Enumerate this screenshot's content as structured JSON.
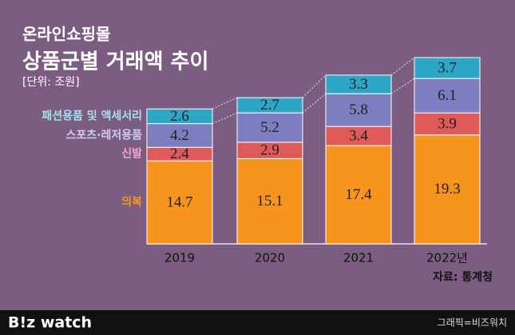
{
  "header": {
    "title_line1": "온라인쇼핑몰",
    "title_line2": "상품군별 거래액 추이",
    "unit": "[단위: 조원]"
  },
  "chart_data": {
    "type": "bar",
    "stacked": true,
    "categories": [
      "2019",
      "2020",
      "2021",
      "2022년"
    ],
    "series": [
      {
        "name": "의복",
        "color": "#f7941d",
        "label_color": "#f7941d",
        "values": [
          14.7,
          15.1,
          17.4,
          19.3
        ]
      },
      {
        "name": "신발",
        "color": "#e05a5a",
        "label_color": "#f5a3cf",
        "values": [
          2.4,
          2.9,
          3.4,
          3.9
        ]
      },
      {
        "name": "스포츠·레저용품",
        "color": "#7c7ec0",
        "label_color": "#cfcdf2",
        "values": [
          4.2,
          5.2,
          5.8,
          6.1
        ]
      },
      {
        "name": "패션용품 및 액세서리",
        "color": "#2ea6c6",
        "label_color": "#a8ddf3",
        "values": [
          2.6,
          2.7,
          3.3,
          3.7
        ]
      }
    ]
  },
  "source": "자료: 통계청",
  "footer": {
    "logo": "B!z watch",
    "credit": "그래픽=비즈워치"
  }
}
